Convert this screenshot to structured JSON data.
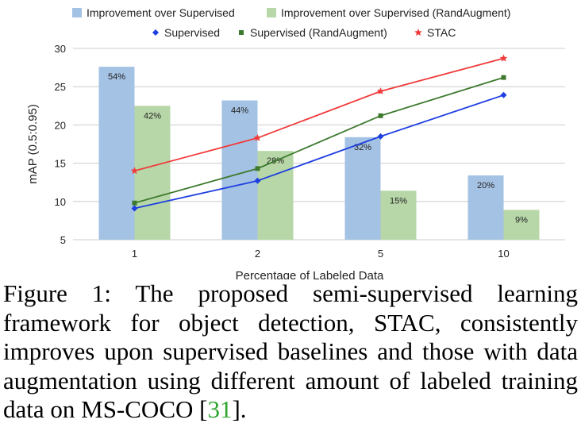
{
  "chart_data": {
    "type": "bar",
    "categories": [
      "1",
      "2",
      "5",
      "10"
    ],
    "xlabel": "Percentage of Labeled Data",
    "ylabel": "mAP (0.5:0.95)",
    "ylim": [
      5,
      30
    ],
    "yticks": [
      "5",
      "10",
      "15",
      "20",
      "25",
      "30"
    ],
    "grid": "horizontal",
    "legend_position": "top",
    "bar_series": [
      {
        "name": "Improvement over Supervised",
        "color": "#a4c2e4",
        "values": [
          27.6,
          23.2,
          18.4,
          13.4
        ],
        "labels": [
          "54%",
          "44%",
          "32%",
          "20%"
        ]
      },
      {
        "name": "Improvement over Supervised (RandAugment)",
        "color": "#b7d7a8",
        "values": [
          22.5,
          16.6,
          11.4,
          8.9
        ],
        "labels": [
          "42%",
          "28%",
          "15%",
          "9%"
        ]
      }
    ],
    "line_series": [
      {
        "name": "Supervised",
        "color": "#1f3fe0",
        "marker": "diamond",
        "values": [
          9.1,
          12.7,
          18.5,
          23.9
        ]
      },
      {
        "name": "Supervised (RandAugment)",
        "color": "#3d7a2e",
        "marker": "square",
        "values": [
          9.8,
          14.3,
          21.2,
          26.2
        ]
      },
      {
        "name": "STAC",
        "color": "#f03a3a",
        "marker": "star",
        "values": [
          14.0,
          18.3,
          24.4,
          28.7
        ]
      }
    ]
  },
  "caption": {
    "text": "Figure 1: The proposed semi-supervised learning framework for object detection, STAC, consistently improves upon supervised baselines and those with data augmentation using different amount of labeled training data on MS-COCO [",
    "cite": "31",
    "end": "]."
  }
}
